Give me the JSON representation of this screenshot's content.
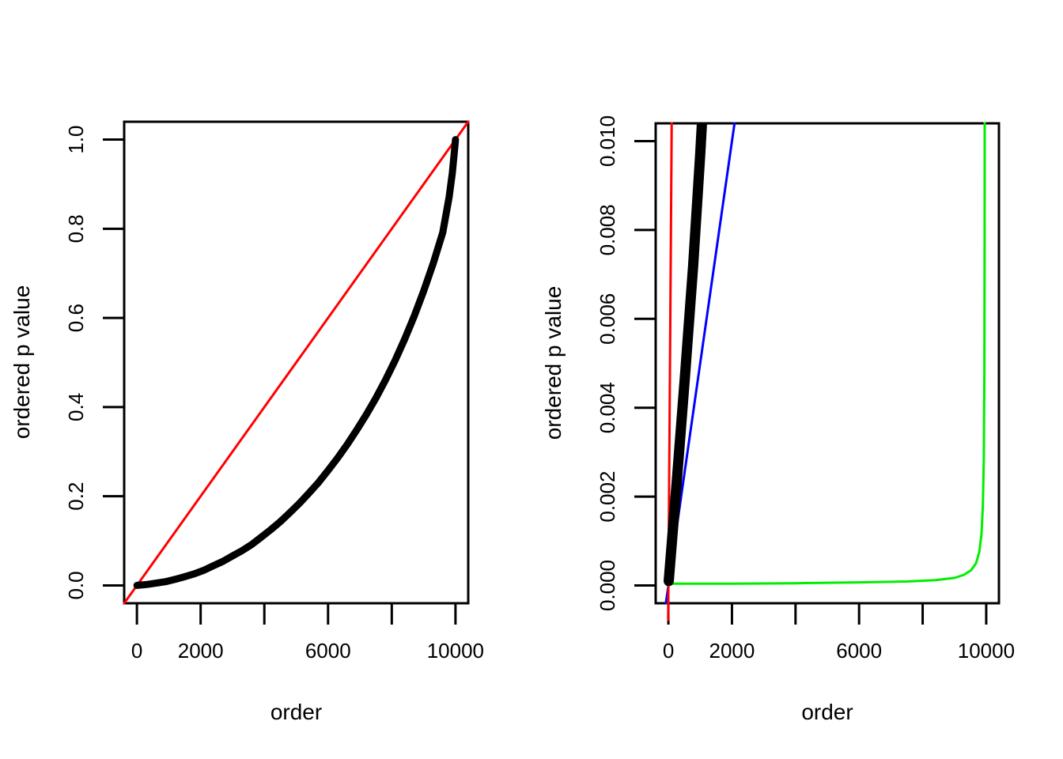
{
  "figure": {
    "background": "#ffffff"
  },
  "chart_data": [
    {
      "type": "scatter",
      "title": "",
      "xlabel": "order",
      "ylabel": "ordered p value",
      "xlim": [
        -400,
        10400
      ],
      "ylim": [
        -0.04,
        1.04
      ],
      "grid": false,
      "legend": "none",
      "x_ticks": [
        0,
        2000,
        4000,
        6000,
        8000,
        10000
      ],
      "x_tick_labels": [
        "0",
        "2000",
        "",
        "6000",
        "",
        "10000"
      ],
      "y_ticks": [
        0.0,
        0.2,
        0.4,
        0.6,
        0.8,
        1.0
      ],
      "y_tick_labels": [
        "0.0",
        "0.2",
        "0.4",
        "0.6",
        "0.8",
        "1.0"
      ],
      "series": [
        {
          "name": "uniform-quantile-line",
          "color": "#FF0000",
          "width": 3,
          "points": [
            [
              -400,
              -0.04
            ],
            [
              10400,
              1.04
            ]
          ]
        },
        {
          "name": "sorted-p-values",
          "color": "#000000",
          "width": 9,
          "points": [
            [
              1,
              0.0
            ],
            [
              300,
              0.002
            ],
            [
              600,
              0.005
            ],
            [
              900,
              0.0085
            ],
            [
              1200,
              0.0135
            ],
            [
              1500,
              0.0195
            ],
            [
              1800,
              0.026
            ],
            [
              2100,
              0.034
            ],
            [
              2400,
              0.044
            ],
            [
              2700,
              0.054
            ],
            [
              3000,
              0.066
            ],
            [
              3300,
              0.078
            ],
            [
              3600,
              0.0915
            ],
            [
              3900,
              0.108
            ],
            [
              4200,
              0.125
            ],
            [
              4500,
              0.143
            ],
            [
              4800,
              0.163
            ],
            [
              5100,
              0.184
            ],
            [
              5400,
              0.207
            ],
            [
              5700,
              0.231
            ],
            [
              6000,
              0.258
            ],
            [
              6300,
              0.286
            ],
            [
              6600,
              0.316
            ],
            [
              6900,
              0.3485
            ],
            [
              7200,
              0.383
            ],
            [
              7500,
              0.42
            ],
            [
              7800,
              0.4605
            ],
            [
              8100,
              0.504
            ],
            [
              8400,
              0.5515
            ],
            [
              8700,
              0.603
            ],
            [
              9000,
              0.66
            ],
            [
              9300,
              0.722
            ],
            [
              9600,
              0.7915
            ],
            [
              9800,
              0.8705
            ],
            [
              9900,
              0.925
            ],
            [
              10000,
              1.0
            ]
          ]
        }
      ]
    },
    {
      "type": "scatter",
      "title": "",
      "xlabel": "order",
      "ylabel": "ordered p value",
      "xlim": [
        -400,
        10400
      ],
      "ylim": [
        -0.0004,
        0.0104
      ],
      "grid": false,
      "legend": "none",
      "x_ticks": [
        0,
        2000,
        4000,
        6000,
        8000,
        10000
      ],
      "x_tick_labels": [
        "0",
        "2000",
        "",
        "6000",
        "",
        "10000"
      ],
      "y_ticks": [
        0.0,
        0.002,
        0.004,
        0.006,
        0.008,
        0.01
      ],
      "y_tick_labels": [
        "0.000",
        "0.002",
        "0.004",
        "0.006",
        "0.008",
        "0.010"
      ],
      "series": [
        {
          "name": "bh-adjusted-p-values",
          "color": "#00EE00",
          "width": 3,
          "points": [
            [
              55,
              4e-05
            ],
            [
              2000,
              4e-05
            ],
            [
              4000,
              5e-05
            ],
            [
              6000,
              7e-05
            ],
            [
              7500,
              9e-05
            ],
            [
              8400,
              0.00012
            ],
            [
              9000,
              0.00017
            ],
            [
              9300,
              0.00024
            ],
            [
              9520,
              0.00034
            ],
            [
              9680,
              0.0005
            ],
            [
              9780,
              0.00075
            ],
            [
              9850,
              0.00115
            ],
            [
              9895,
              0.0018
            ],
            [
              9925,
              0.0029
            ],
            [
              9942,
              0.0048
            ],
            [
              9950,
              0.0078
            ],
            [
              9953,
              0.0106
            ]
          ]
        },
        {
          "name": "bh-threshold-line",
          "color": "#0000FF",
          "width": 3,
          "points": [
            [
              -80,
              -0.0004
            ],
            [
              2170,
              0.01085
            ]
          ]
        },
        {
          "name": "uniform-quantile-line",
          "color": "#FF0000",
          "width": 3,
          "points": [
            [
              -8,
              -0.0008
            ],
            [
              105,
              0.0105
            ]
          ]
        },
        {
          "name": "sorted-p-values",
          "color": "#000000",
          "width": 13,
          "points": [
            [
              10,
              0.0001
            ],
            [
              260,
              0.0023
            ],
            [
              520,
              0.0047
            ],
            [
              780,
              0.0072
            ],
            [
              1000,
              0.0097
            ],
            [
              1070,
              0.0106
            ]
          ]
        }
      ]
    }
  ]
}
